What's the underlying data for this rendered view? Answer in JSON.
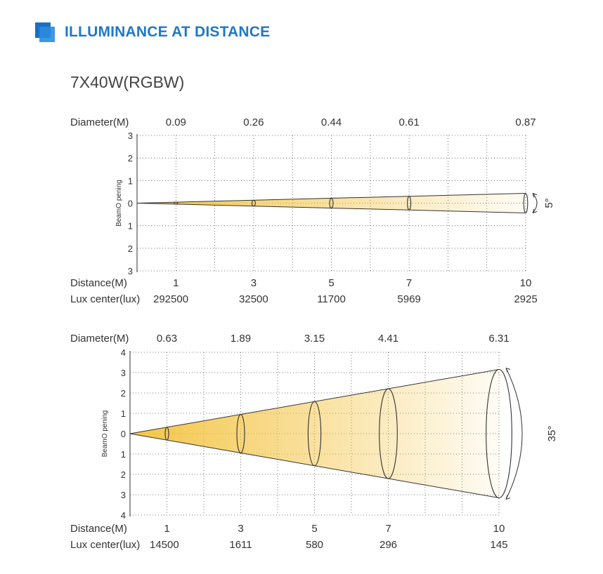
{
  "header": {
    "title": "ILLUMINANCE AT DISTANCE",
    "icon": "blue-square-icon"
  },
  "model": "7X40W(RGBW)",
  "chart_data": [
    {
      "type": "beam",
      "diameter_label": "Diameter(M)",
      "distance_label": "Distance(M)",
      "lux_label": "Lux center(lux)",
      "y_axis_label": "BeamO pening",
      "y_ticks": [
        "3",
        "2",
        "1",
        "0",
        "1",
        "2",
        "3"
      ],
      "ylim": [
        -3,
        3
      ],
      "xlim": [
        0,
        10
      ],
      "distances": [
        "1",
        "3",
        "5",
        "7",
        "10"
      ],
      "diameters": [
        "0.09",
        "0.26",
        "0.44",
        "0.61",
        "0.87"
      ],
      "lux": [
        "292500",
        "32500",
        "11700",
        "5969",
        "2925"
      ],
      "angle": "5°",
      "color": "#f3c23d"
    },
    {
      "type": "beam",
      "diameter_label": "Diameter(M)",
      "distance_label": "Distance(M)",
      "lux_label": "Lux center(lux)",
      "y_axis_label": "BeamO pening",
      "y_ticks": [
        "4",
        "3",
        "2",
        "1",
        "0",
        "1",
        "2",
        "3",
        "4"
      ],
      "ylim": [
        -4,
        4
      ],
      "xlim": [
        0,
        10
      ],
      "distances": [
        "1",
        "3",
        "5",
        "7",
        "10"
      ],
      "diameters": [
        "0.63",
        "1.89",
        "3.15",
        "4.41",
        "6.31"
      ],
      "lux": [
        "14500",
        "1611",
        "580",
        "296",
        "145"
      ],
      "angle": "35°",
      "color": "#f3c23d"
    }
  ]
}
